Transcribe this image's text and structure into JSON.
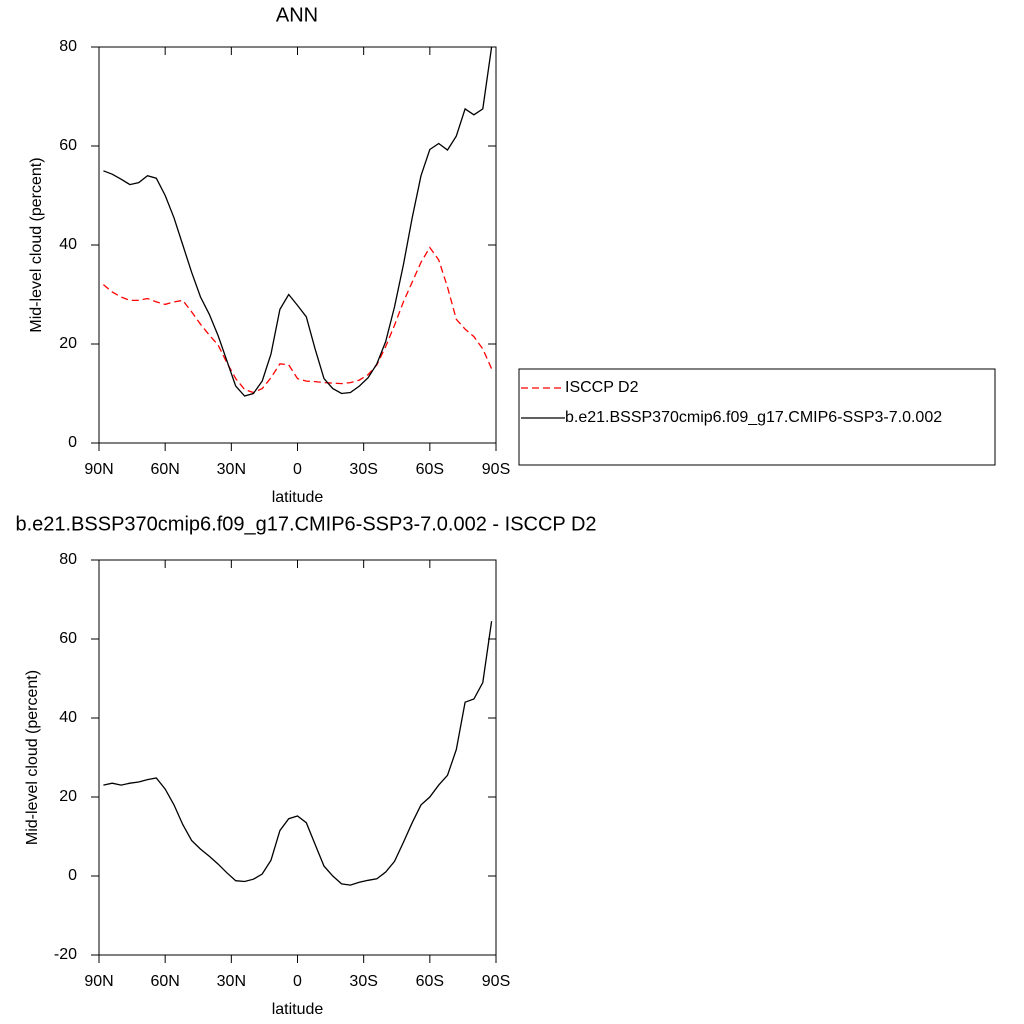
{
  "chart_data": [
    {
      "type": "line",
      "title": "ANN",
      "xlabel": "latitude",
      "ylabel": "Mid-level cloud (percent)",
      "x": [
        88,
        84,
        80,
        76,
        72,
        68,
        64,
        60,
        56,
        52,
        48,
        44,
        40,
        36,
        32,
        28,
        24,
        20,
        16,
        12,
        8,
        4,
        0,
        -4,
        -8,
        -12,
        -16,
        -20,
        -24,
        -28,
        -32,
        -36,
        -40,
        -44,
        -48,
        -52,
        -56,
        -60,
        -64,
        -68,
        -72,
        -76,
        -80,
        -84,
        -88
      ],
      "series": [
        {
          "name": "ISCCP D2",
          "color": "#ff0000",
          "style": "dashed",
          "values": [
            32,
            30.5,
            29.5,
            28.8,
            28.8,
            29.2,
            28.5,
            28,
            28.5,
            28.8,
            26.5,
            24,
            21.8,
            19.8,
            16.2,
            13,
            10.8,
            10.2,
            11,
            13.2,
            16,
            15.8,
            13,
            12.5,
            12.4,
            12.2,
            12.1,
            12,
            12.2,
            12.7,
            13.8,
            15.8,
            19.5,
            23.8,
            28.5,
            32.5,
            36.5,
            39.5,
            37,
            31.5,
            25,
            23,
            21.5,
            19,
            15
          ]
        },
        {
          "name": "b.e21.BSSP370cmip6.f09_g17.CMIP6-SSP3-7.0.002",
          "color": "#000000",
          "style": "solid",
          "values": [
            55,
            54.3,
            53.3,
            52.2,
            52.6,
            54,
            53.5,
            50,
            45.5,
            40,
            34.5,
            29.5,
            26,
            21.7,
            16.6,
            11.5,
            9.5,
            10,
            12.5,
            18,
            27,
            30,
            27.8,
            25.5,
            19,
            13,
            11,
            10,
            10.2,
            11.5,
            13.2,
            16,
            20.5,
            27.5,
            36,
            45.5,
            54,
            59.3,
            60.5,
            59.2,
            62,
            67.5,
            66.3,
            67.5,
            80
          ]
        }
      ],
      "xlim": [
        90,
        -90
      ],
      "xticks": [
        {
          "value": 90,
          "label": "90N"
        },
        {
          "value": 60,
          "label": "60N"
        },
        {
          "value": 30,
          "label": "30N"
        },
        0,
        {
          "value": -30,
          "label": "30S"
        },
        {
          "value": -60,
          "label": "60S"
        },
        {
          "value": -90,
          "label": "90S"
        }
      ],
      "ylim": [
        0,
        80
      ],
      "yticks": [
        0,
        20,
        40,
        60,
        80
      ],
      "legend": "right"
    },
    {
      "type": "line",
      "title": "b.e21.BSSP370cmip6.f09_g17.CMIP6-SSP3-7.0.002 - ISCCP D2",
      "xlabel": "latitude",
      "ylabel": "Mid-level cloud (percent)",
      "x": [
        88,
        84,
        80,
        76,
        72,
        68,
        64,
        60,
        56,
        52,
        48,
        44,
        40,
        36,
        32,
        28,
        24,
        20,
        16,
        12,
        8,
        4,
        0,
        -4,
        -8,
        -12,
        -16,
        -20,
        -24,
        -28,
        -32,
        -36,
        -40,
        -44,
        -48,
        -52,
        -56,
        -60,
        -64,
        -68,
        -72,
        -76,
        -80,
        -84,
        -88
      ],
      "series": [
        {
          "color": "#000000",
          "style": "solid",
          "values": [
            23,
            23.5,
            23,
            23.5,
            23.8,
            24.4,
            24.8,
            22,
            18,
            13,
            9,
            6.8,
            5,
            3,
            0.8,
            -1.2,
            -1.4,
            -0.8,
            0.5,
            4,
            11.5,
            14.5,
            15.2,
            13.5,
            8,
            2.5,
            0,
            -2,
            -2.3,
            -1.6,
            -1.1,
            -0.7,
            1,
            3.7,
            8.5,
            13.5,
            18,
            20,
            23,
            25.5,
            32,
            44,
            44.8,
            49,
            64.5
          ]
        }
      ],
      "xlim": [
        90,
        -90
      ],
      "xticks": [
        {
          "value": 90,
          "label": "90N"
        },
        {
          "value": 60,
          "label": "60N"
        },
        {
          "value": 30,
          "label": "30N"
        },
        0,
        {
          "value": -30,
          "label": "30S"
        },
        {
          "value": -60,
          "label": "60S"
        },
        {
          "value": -90,
          "label": "90S"
        }
      ],
      "ylim": [
        -20,
        80
      ],
      "yticks": [
        -20,
        0,
        20,
        40,
        60,
        80
      ]
    }
  ]
}
